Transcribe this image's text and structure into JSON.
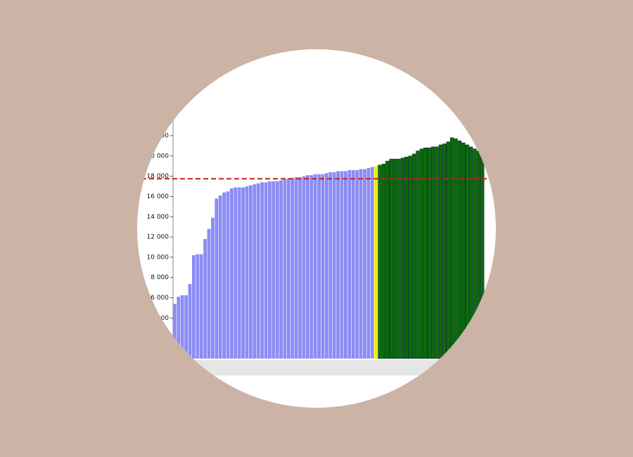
{
  "chart_data": {
    "type": "bar",
    "series": [
      {
        "color": "#8c8cf5",
        "values": [
          5400,
          6100,
          6250,
          6250,
          7350,
          10200,
          10300,
          10300,
          11800,
          12800,
          13900,
          15800,
          16100,
          16400,
          16500,
          16800,
          16900,
          16900,
          16900,
          17000,
          17100,
          17200,
          17300,
          17400,
          17400,
          17500,
          17500,
          17500,
          17600,
          17700,
          17800,
          17800,
          17900,
          17900,
          18000,
          18100,
          18100,
          18200,
          18200,
          18200,
          18300,
          18400,
          18400,
          18500,
          18500,
          18500,
          18600,
          18600,
          18600,
          18700,
          18700,
          18800,
          18900
        ]
      },
      {
        "color": "#f0f000",
        "values": [
          19000
        ]
      },
      {
        "color": "#0b6a0b",
        "values": [
          19100,
          19200,
          19500,
          19700,
          19700,
          19700,
          19800,
          19900,
          20000,
          20200,
          20500,
          20700,
          20800,
          20800,
          20900,
          20900,
          21100,
          21200,
          21400,
          21800,
          21700,
          21500,
          21300,
          21100,
          20900,
          20700,
          20500,
          20300
        ]
      }
    ],
    "reference_line": 17750,
    "reference_color": "#c02020",
    "ylim": [
      0,
      22000
    ],
    "yticks": [
      {
        "value": 4000,
        "label": "4 000"
      },
      {
        "value": 6000,
        "label": "6 000"
      },
      {
        "value": 8000,
        "label": "8 000"
      },
      {
        "value": 10000,
        "label": "10 000"
      },
      {
        "value": 12000,
        "label": "12 000"
      },
      {
        "value": 14000,
        "label": "14 000"
      },
      {
        "value": 16000,
        "label": "16 000"
      },
      {
        "value": 18000,
        "label": "18 000"
      },
      {
        "value": 20000,
        "label": "20 000"
      },
      {
        "value": 22000,
        "label": "22 000"
      }
    ]
  }
}
